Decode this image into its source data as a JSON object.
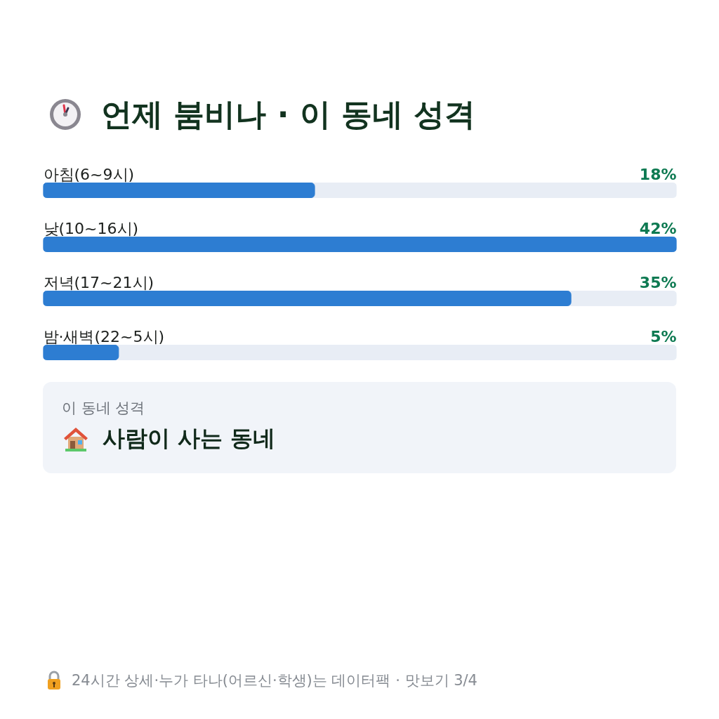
{
  "chart_data": {
    "type": "bar",
    "orientation": "horizontal",
    "title": "언제 붐비나 · 이 동네 성격",
    "categories": [
      "아침(6~9시)",
      "낮(10~16시)",
      "저녁(17~21시)",
      "밤·새벽(22~5시)"
    ],
    "values": [
      18,
      42,
      35,
      5
    ],
    "value_labels": [
      "18%",
      "42%",
      "35%",
      "5%"
    ],
    "color": "#2d7dd2",
    "tick_labels": "y",
    "annotations": [
      "이 동네 성격",
      "사람이 사는 동네",
      "24시간 상세·누가 타나(어르신·학생)는 데이터팩 · 맛보기 3/4"
    ]
  }
}
